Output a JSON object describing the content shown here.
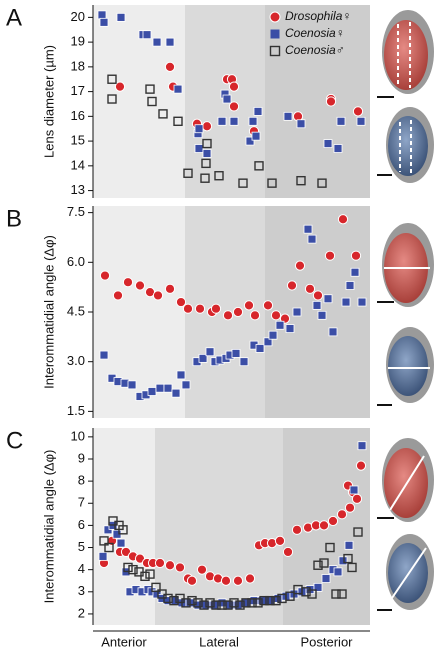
{
  "chart_data": [
    {
      "type": "scatter",
      "panel_label": "A",
      "y_label": "Lens diameter (µm)",
      "legend": "upper right",
      "xlim": [
        0,
        277
      ],
      "ylim": [
        12.7,
        20.5
      ],
      "yticks": [
        13,
        14,
        15,
        16,
        17,
        18,
        19,
        20
      ],
      "shading": [
        {
          "range": [
            0,
            92
          ],
          "color": "#ededed"
        },
        {
          "range": [
            92,
            172
          ],
          "color": "#dadada"
        },
        {
          "range": [
            172,
            277
          ],
          "color": "#cdcdcd"
        }
      ],
      "series": [
        {
          "name": "Drosophila♀",
          "color": "#d7262b",
          "marker": "circle",
          "x": [
            27,
            77,
            80,
            104,
            114,
            134,
            139,
            141,
            141,
            161,
            205,
            238,
            238,
            265
          ],
          "values": [
            17.2,
            18.0,
            17.2,
            15.7,
            15.6,
            17.5,
            17.5,
            16.4,
            17.2,
            15.4,
            16.0,
            16.7,
            16.6,
            16.2
          ]
        },
        {
          "name": "Coenosia♀",
          "color": "#3b4ea6",
          "marker": "square",
          "x": [
            9,
            11,
            28,
            50,
            54,
            64,
            77,
            85,
            105,
            106,
            106,
            114,
            129,
            132,
            134,
            141,
            157,
            160,
            163,
            165,
            195,
            208,
            235,
            245,
            248,
            268
          ],
          "values": [
            20.1,
            19.8,
            20.0,
            19.3,
            19.3,
            19.0,
            19.0,
            17.1,
            15.3,
            14.7,
            15.5,
            14.5,
            15.8,
            16.9,
            16.7,
            15.8,
            15.0,
            15.8,
            15.2,
            16.2,
            16.0,
            15.7,
            14.9,
            14.7,
            15.8,
            15.8
          ]
        },
        {
          "name": "Coenosia♂",
          "color": "#333333",
          "marker": "open-square",
          "x": [
            19,
            19,
            57,
            59,
            70,
            85,
            95,
            112,
            113,
            114,
            126,
            150,
            166,
            179,
            208,
            229
          ],
          "values": [
            17.5,
            16.7,
            17.1,
            16.6,
            16.1,
            15.8,
            13.7,
            13.5,
            14.1,
            14.9,
            13.6,
            13.3,
            14.0,
            13.3,
            13.4,
            13.3
          ]
        }
      ]
    },
    {
      "type": "scatter",
      "panel_label": "B",
      "y_label": "Interommatidial angle (Δφ)",
      "xlim": [
        0,
        277
      ],
      "ylim": [
        1.3,
        7.7
      ],
      "yticks": [
        1.5,
        {
          "value": 3,
          "label": "3.0"
        },
        4.5,
        {
          "value": 6,
          "label": "6.0"
        },
        7.5
      ],
      "shading": [
        {
          "range": [
            0,
            92
          ],
          "color": "#ededed"
        },
        {
          "range": [
            92,
            172
          ],
          "color": "#dadada"
        },
        {
          "range": [
            172,
            277
          ],
          "color": "#cdcdcd"
        }
      ],
      "series": [
        {
          "color": "#d7262b",
          "marker": "circle",
          "x": [
            12,
            25,
            35,
            47,
            57,
            65,
            77,
            88,
            95,
            107,
            119,
            123,
            135,
            145,
            156,
            162,
            175,
            183,
            192,
            199,
            207,
            217,
            225,
            237,
            250,
            263
          ],
          "values": [
            5.6,
            5.0,
            5.4,
            5.3,
            5.1,
            5.0,
            5.2,
            4.8,
            4.6,
            4.6,
            4.5,
            4.6,
            4.4,
            4.5,
            4.7,
            4.4,
            4.7,
            4.4,
            4.3,
            5.3,
            5.9,
            5.2,
            5.0,
            6.2,
            7.3,
            6.2
          ]
        },
        {
          "color": "#3b4ea6",
          "marker": "square",
          "x": [
            11,
            19,
            25,
            32,
            39,
            47,
            53,
            59,
            67,
            75,
            83,
            88,
            93,
            104,
            110,
            117,
            122,
            127,
            133,
            137,
            143,
            151,
            161,
            167,
            175,
            180,
            187,
            197,
            204,
            215,
            219,
            224,
            229,
            235,
            240,
            253,
            257,
            262,
            269
          ],
          "values": [
            3.2,
            2.5,
            2.4,
            2.35,
            2.3,
            1.95,
            2.0,
            2.1,
            2.2,
            2.2,
            2.05,
            2.6,
            2.3,
            3.0,
            3.1,
            3.3,
            3.0,
            3.05,
            3.1,
            3.2,
            3.25,
            3.0,
            3.5,
            3.4,
            3.6,
            3.8,
            4.1,
            4.0,
            4.5,
            7.0,
            6.7,
            4.7,
            4.4,
            4.9,
            3.9,
            4.8,
            5.3,
            5.7,
            4.8
          ]
        }
      ]
    },
    {
      "type": "scatter",
      "panel_label": "C",
      "y_label": "Interommatidial angle (Δφ)",
      "xlim": [
        0,
        277
      ],
      "ylim": [
        1.5,
        10.4
      ],
      "yticks": [
        2,
        3,
        4,
        5,
        6,
        7,
        8,
        9,
        10
      ],
      "shading": [
        {
          "range": [
            0,
            62
          ],
          "color": "#ededed"
        },
        {
          "range": [
            62,
            190
          ],
          "color": "#dadada"
        },
        {
          "range": [
            190,
            277
          ],
          "color": "#cdcdcd"
        }
      ],
      "region_labels": [
        "Anterior",
        "Lateral",
        "Posterior"
      ],
      "series": [
        {
          "color": "#d7262b",
          "marker": "circle",
          "x": [
            11,
            19,
            27,
            33,
            40,
            47,
            54,
            60,
            67,
            77,
            87,
            95,
            99,
            109,
            117,
            125,
            133,
            145,
            157,
            166,
            172,
            179,
            187,
            195,
            204,
            215,
            223,
            231,
            240,
            249,
            255,
            257,
            260,
            264,
            268
          ],
          "values": [
            4.3,
            5.3,
            4.8,
            4.8,
            4.6,
            4.5,
            4.3,
            4.3,
            4.3,
            4.2,
            4.1,
            3.6,
            3.5,
            4.0,
            3.7,
            3.6,
            3.5,
            3.5,
            3.6,
            5.1,
            5.2,
            5.2,
            5.3,
            4.8,
            5.8,
            5.9,
            6.0,
            6.0,
            6.2,
            6.5,
            7.8,
            6.8,
            7.5,
            7.2,
            8.7
          ]
        },
        {
          "color": "#3b4ea6",
          "marker": "square",
          "x": [
            10,
            15,
            20,
            24,
            28,
            33,
            37,
            43,
            49,
            55,
            59,
            64,
            69,
            75,
            82,
            89,
            97,
            105,
            113,
            121,
            129,
            137,
            145,
            153,
            161,
            169,
            177,
            185,
            193,
            201,
            209,
            217,
            225,
            233,
            240,
            245,
            250,
            256,
            261,
            269
          ],
          "values": [
            4.6,
            5.8,
            6.0,
            5.6,
            5.2,
            3.9,
            3.0,
            3.1,
            3.0,
            3.1,
            3.0,
            2.9,
            2.7,
            2.6,
            2.6,
            2.5,
            2.5,
            2.4,
            2.4,
            2.4,
            2.5,
            2.4,
            2.4,
            2.5,
            2.6,
            2.6,
            2.6,
            2.7,
            2.8,
            2.9,
            3.0,
            3.1,
            3.2,
            3.6,
            4.0,
            3.9,
            4.4,
            5.1,
            7.6,
            9.6
          ]
        },
        {
          "color": "#333333",
          "marker": "open-square",
          "x": [
            11,
            16,
            20,
            26,
            30,
            35,
            40,
            46,
            52,
            57,
            63,
            69,
            75,
            81,
            87,
            93,
            99,
            105,
            111,
            117,
            123,
            129,
            135,
            141,
            147,
            153,
            159,
            165,
            171,
            177,
            183,
            189,
            197,
            205,
            213,
            219,
            225,
            231,
            237,
            243,
            249,
            255,
            259,
            265
          ],
          "values": [
            5.3,
            5.0,
            6.2,
            6.0,
            5.8,
            4.1,
            4.0,
            3.9,
            3.7,
            3.8,
            3.2,
            2.9,
            2.7,
            2.6,
            2.7,
            2.5,
            2.6,
            2.5,
            2.4,
            2.5,
            2.4,
            2.4,
            2.4,
            2.5,
            2.4,
            2.5,
            2.5,
            2.5,
            2.6,
            2.6,
            2.6,
            2.7,
            2.8,
            3.1,
            3.0,
            2.9,
            4.2,
            4.3,
            5.0,
            2.9,
            2.9,
            4.5,
            4.1,
            5.7
          ]
        }
      ]
    }
  ]
}
